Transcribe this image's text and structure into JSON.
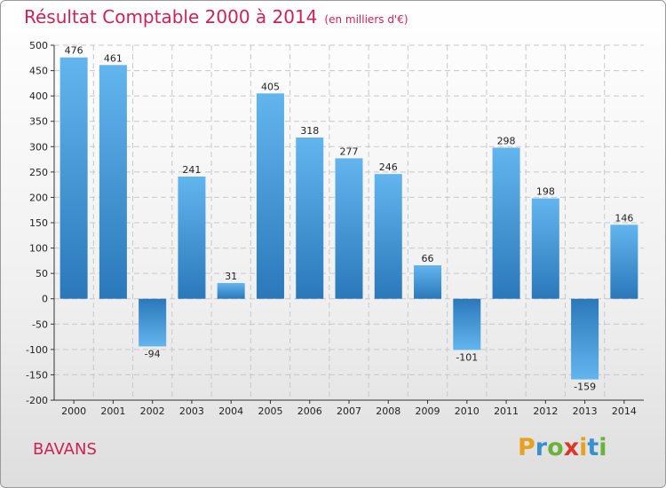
{
  "title": {
    "main": "Résultat Comptable 2000 à 2014",
    "unit": "(en milliers d'€)"
  },
  "commune": "BAVANS",
  "brand": {
    "text": "Proxiti",
    "letter_colors": [
      "#e8a020",
      "#3a8fd0",
      "#6ab23a",
      "#d83a2a",
      "#e8a020",
      "#3a8fd0",
      "#6ab23a"
    ]
  },
  "colors": {
    "title": "#cc2255",
    "bar_light": "#63b5ee",
    "bar_dark": "#2a78ba",
    "grid": "#c8c8c8",
    "axis": "#333333"
  },
  "chart_data": {
    "type": "bar",
    "categories": [
      "2000",
      "2001",
      "2002",
      "2003",
      "2004",
      "2005",
      "2006",
      "2007",
      "2008",
      "2009",
      "2010",
      "2011",
      "2012",
      "2013",
      "2014"
    ],
    "values": [
      476,
      461,
      -94,
      241,
      31,
      405,
      318,
      277,
      246,
      66,
      -101,
      298,
      198,
      -159,
      146
    ],
    "title": "Résultat Comptable 2000 à 2014",
    "subtitle": "(en milliers d'€)",
    "ylim": [
      -200,
      500
    ],
    "yticks": [
      -200,
      -150,
      -100,
      -50,
      0,
      50,
      100,
      150,
      200,
      250,
      300,
      350,
      400,
      450,
      500
    ],
    "grid": true
  }
}
